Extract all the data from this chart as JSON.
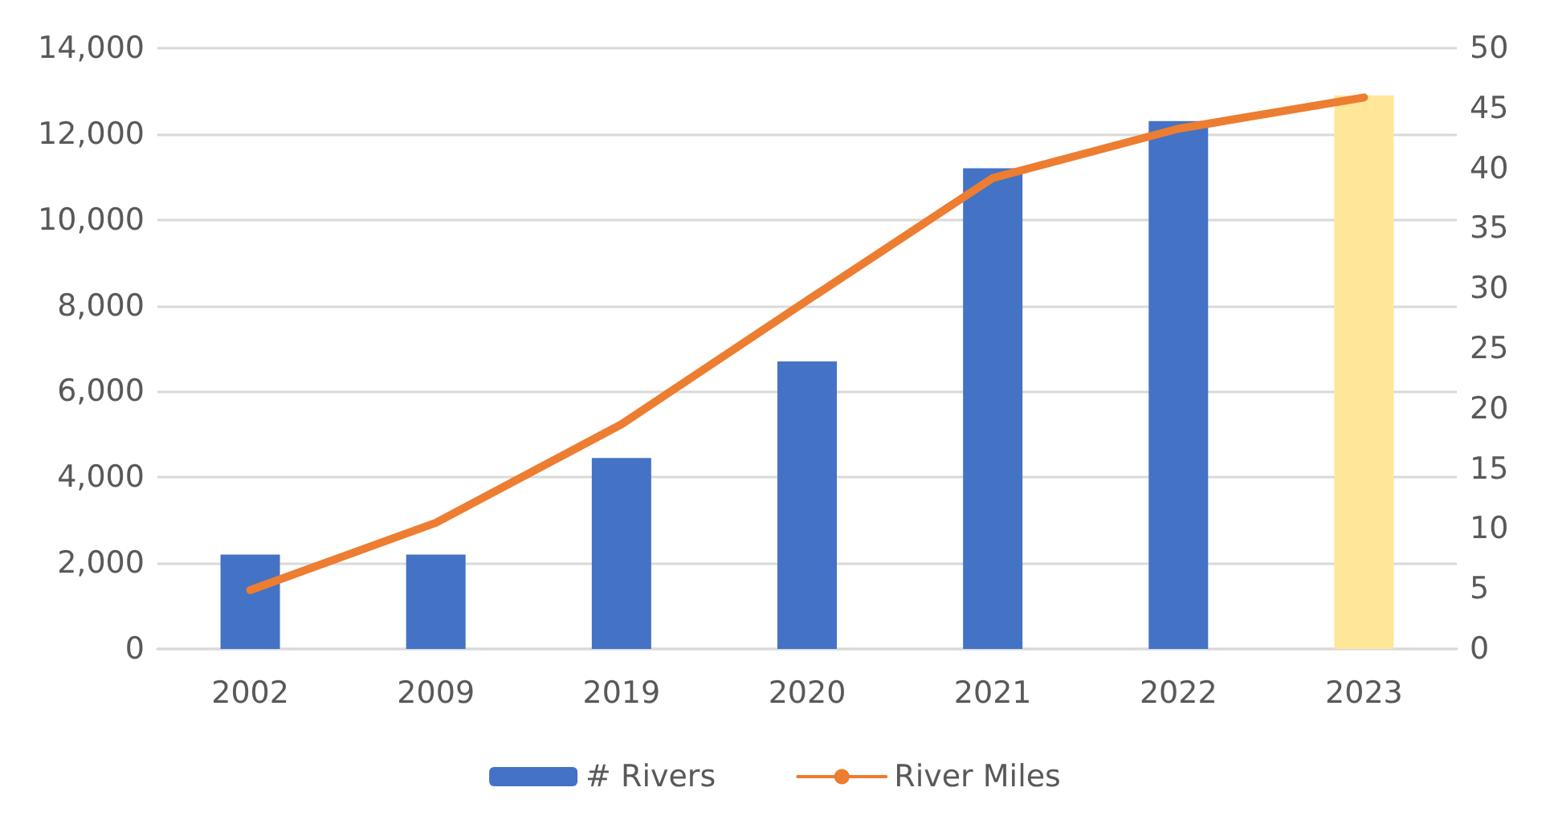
{
  "chart_data": {
    "type": "bar",
    "categories": [
      "2002",
      "2009",
      "2019",
      "2020",
      "2021",
      "2022",
      "2023"
    ],
    "series": [
      {
        "name": "# Rivers",
        "color": "#4472c4",
        "colors": [
          "#4472c4",
          "#4472c4",
          "#4472c4",
          "#4472c4",
          "#4472c4",
          "#4472c4",
          "#ffe699"
        ],
        "values": [
          2200,
          2200,
          4450,
          6700,
          11200,
          12300,
          12900
        ]
      },
      {
        "name": "River Miles",
        "type": "line",
        "color": "#ed7d31",
        "axis": "y2",
        "values": [
          4.9,
          10.5,
          18.7,
          29.0,
          39.2,
          43.3,
          45.9
        ]
      }
    ],
    "ylim": [
      0,
      14000
    ],
    "yticks": [
      0,
      {
        "value": 2000,
        "label": "2,000"
      },
      {
        "value": 4000,
        "label": "4,000"
      },
      {
        "value": 6000,
        "label": "6,000"
      },
      {
        "value": 8000,
        "label": "8,000"
      },
      {
        "value": 10000,
        "label": "10,000"
      },
      {
        "value": 12000,
        "label": "12,000"
      },
      {
        "value": 14000,
        "label": "14,000"
      }
    ],
    "y2lim": [
      0,
      50
    ],
    "y2ticks": [
      0,
      5,
      10,
      15,
      20,
      25,
      30,
      35,
      40,
      45,
      50
    ],
    "grid": "y",
    "legend": "bottom",
    "marker": "none",
    "line_style": "solid"
  }
}
